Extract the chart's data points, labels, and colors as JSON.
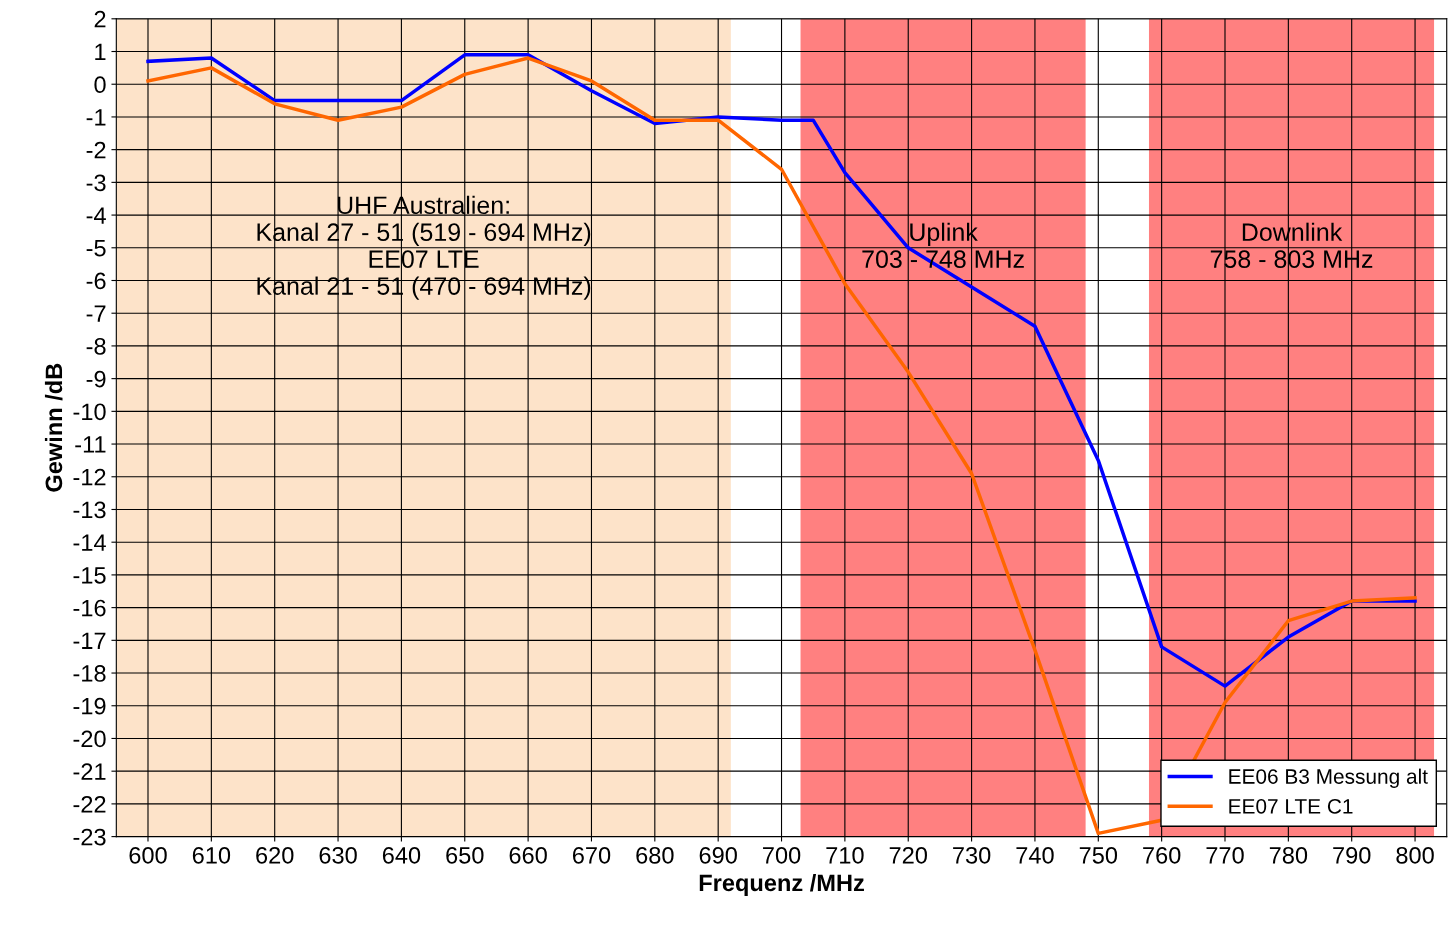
{
  "chart_data": {
    "type": "line",
    "xlabel": "Frequenz /MHz",
    "ylabel": "Gewinn /dB",
    "xlim": [
      595,
      805
    ],
    "xticks": [
      600,
      610,
      620,
      630,
      640,
      650,
      660,
      670,
      680,
      690,
      700,
      710,
      720,
      730,
      740,
      750,
      760,
      770,
      780,
      790,
      800
    ],
    "ylim": [
      -23,
      2
    ],
    "yticks": [
      -23,
      -22,
      -21,
      -20,
      -19,
      -18,
      -17,
      -16,
      -15,
      -14,
      -13,
      -12,
      -11,
      -10,
      -9,
      -8,
      -7,
      -6,
      -5,
      -4,
      -3,
      -2,
      -1,
      0,
      1,
      2
    ],
    "series": [
      {
        "name": "EE06 B3 Messung alt",
        "color": "#0000ff",
        "x": [
          600,
          610,
          620,
          630,
          640,
          650,
          660,
          670,
          680,
          690,
          700,
          705,
          710,
          720,
          730,
          740,
          750,
          760,
          770,
          780,
          790,
          800
        ],
        "values": [
          0.7,
          0.8,
          -0.5,
          -0.5,
          -0.5,
          0.9,
          0.9,
          -0.2,
          -1.2,
          -1.0,
          -1.1,
          -1.1,
          -2.7,
          -5.0,
          -6.2,
          -7.4,
          -11.5,
          -17.2,
          -18.4,
          -16.9,
          -15.8,
          -15.8
        ]
      },
      {
        "name": "EE07 LTE C1",
        "color": "#ff6600",
        "x": [
          600,
          610,
          620,
          630,
          640,
          650,
          660,
          670,
          680,
          690,
          700,
          710,
          720,
          730,
          740,
          750,
          760,
          770,
          780,
          790,
          800
        ],
        "values": [
          0.1,
          0.5,
          -0.6,
          -1.1,
          -0.7,
          0.3,
          0.8,
          0.1,
          -1.1,
          -1.1,
          -2.6,
          -6.1,
          -8.8,
          -11.9,
          -17.3,
          -22.9,
          -22.5,
          -18.9,
          -16.4,
          -15.8,
          -15.7
        ]
      }
    ],
    "bands": [
      {
        "axis": "x",
        "from": 595,
        "to": 692,
        "label": "UHF Australien:\nKanal 27 - 51 (519 - 694 MHz)\nEE07 LTE\nKanal 21 - 51 (470 - 694 MHz)",
        "color": "#fde3c9"
      },
      {
        "axis": "x",
        "from": 703,
        "to": 748,
        "label": "Uplink\n703 - 748 MHz",
        "color": "#ff8080"
      },
      {
        "axis": "x",
        "from": 758,
        "to": 803,
        "label": "Downlink\n758 - 803 MHz",
        "color": "#ff8080"
      }
    ],
    "grid": true,
    "legend": "lower right",
    "marker": "none",
    "line_style": "solid"
  }
}
